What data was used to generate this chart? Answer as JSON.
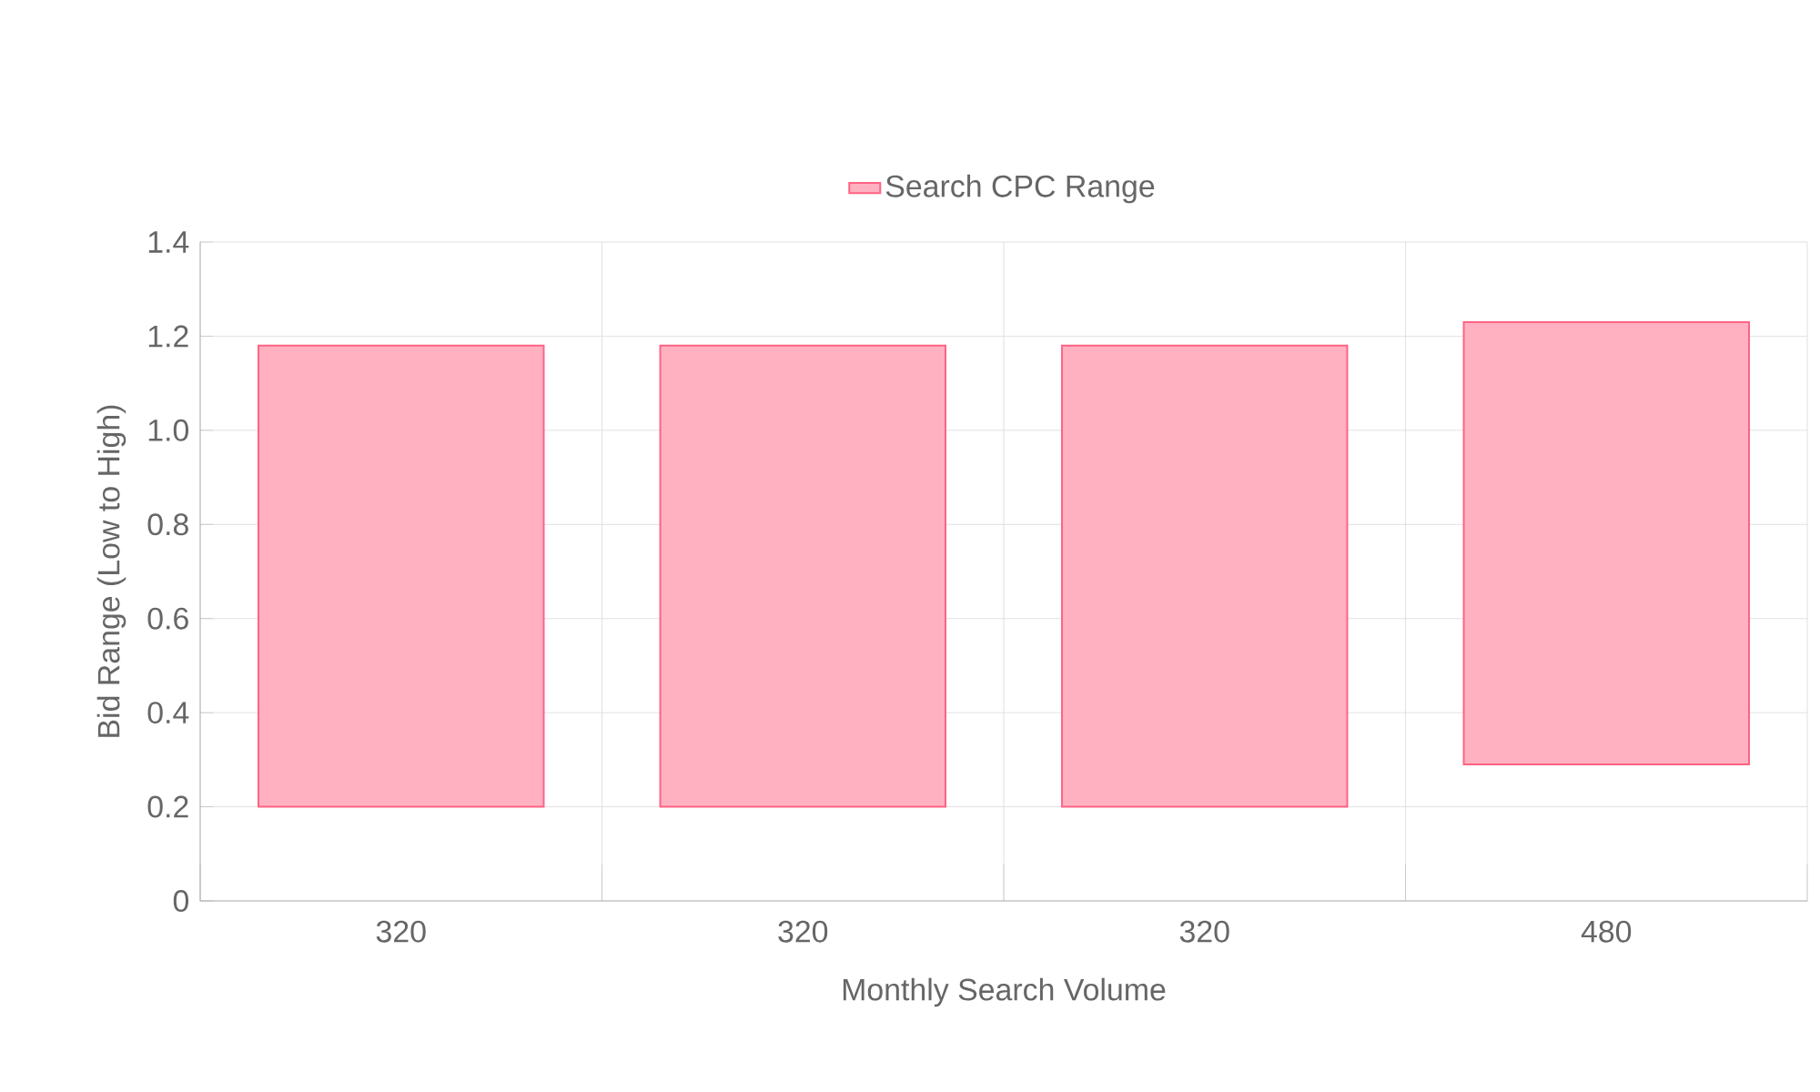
{
  "chart_data": {
    "type": "bar",
    "categories": [
      "320",
      "320",
      "320",
      "480"
    ],
    "series": [
      {
        "name": "Search CPC Range",
        "color": "#ff6384",
        "values": [
          0.98,
          0.98,
          0.98,
          0.94
        ],
        "base": [
          0.2,
          0.2,
          0.2,
          0.29
        ]
      }
    ],
    "xlabel": "Monthly Search Volume",
    "ylabel": "Bid Range (Low to High)",
    "ylim": [
      0,
      1.4
    ],
    "yticks": [
      0,
      0.2,
      0.4,
      0.6,
      0.8,
      {
        "value": 1.0,
        "label": "1.0"
      },
      1.2,
      1.4
    ],
    "grid": true,
    "legend": "top"
  }
}
